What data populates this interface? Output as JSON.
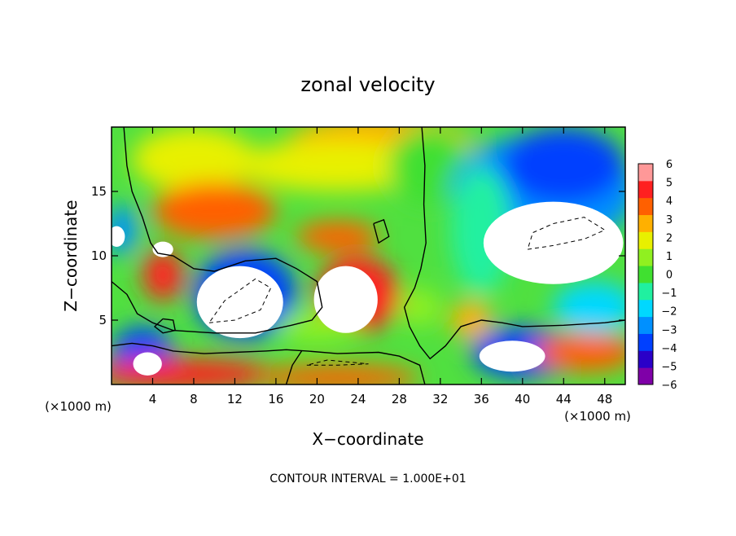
{
  "chart_data": {
    "type": "heatmap",
    "title": "zonal velocity",
    "xlabel": "X−coordinate",
    "ylabel": "Z−coordinate",
    "x_unit_left": "(×1000 m)",
    "x_unit_right": "(×1000 m)",
    "footnote": "CONTOUR INTERVAL = 1.000E+01",
    "xlim": [
      0,
      50
    ],
    "ylim": [
      0,
      20
    ],
    "x_ticks": [
      4,
      8,
      12,
      16,
      20,
      24,
      28,
      32,
      36,
      40,
      44,
      48
    ],
    "y_ticks": [
      5,
      10,
      15
    ],
    "colorbar": {
      "ticks": [
        "6",
        "5",
        "4",
        "3",
        "2",
        "1",
        "0",
        "−1",
        "−2",
        "−3",
        "−4",
        "−5",
        "−6"
      ],
      "min": -6,
      "max": 6,
      "colors": [
        "#7f00a8",
        "#2a00c8",
        "#0040ff",
        "#0090ff",
        "#00d8ff",
        "#20f0a0",
        "#40e030",
        "#90f020",
        "#e8f000",
        "#ffb000",
        "#ff6000",
        "#ff2020",
        "#ff9898"
      ]
    },
    "features": [
      {
        "label": "strong negative core (upper right, off-scale)",
        "x": 43,
        "z": 11,
        "value": -8
      },
      {
        "label": "negative core (x~12-16)",
        "x": 13,
        "z": 6,
        "value": -8
      },
      {
        "label": "positive core (x~20-26)",
        "x": 23,
        "z": 6.5,
        "value": 7
      },
      {
        "label": "positive band aloft",
        "x": 10,
        "z": 13.5,
        "value": 4
      },
      {
        "label": "positive band",
        "x": 22,
        "z": 11.5,
        "value": 4
      },
      {
        "label": "negative region (upper right)",
        "x": 42,
        "z": 15,
        "value": -4
      },
      {
        "label": "warm region at top",
        "x": 22,
        "z": 19,
        "value": 3
      },
      {
        "label": "positive core (x~4-6)",
        "x": 5,
        "z": 8.5,
        "value": 5
      },
      {
        "label": "negative core lower-left",
        "x": 4,
        "z": 2,
        "value": -7
      },
      {
        "label": "negative core near surface",
        "x": 39,
        "z": 2.2,
        "value": -8
      },
      {
        "label": "positive surface jet",
        "x": 30,
        "z": 0.6,
        "value": 4
      }
    ]
  }
}
